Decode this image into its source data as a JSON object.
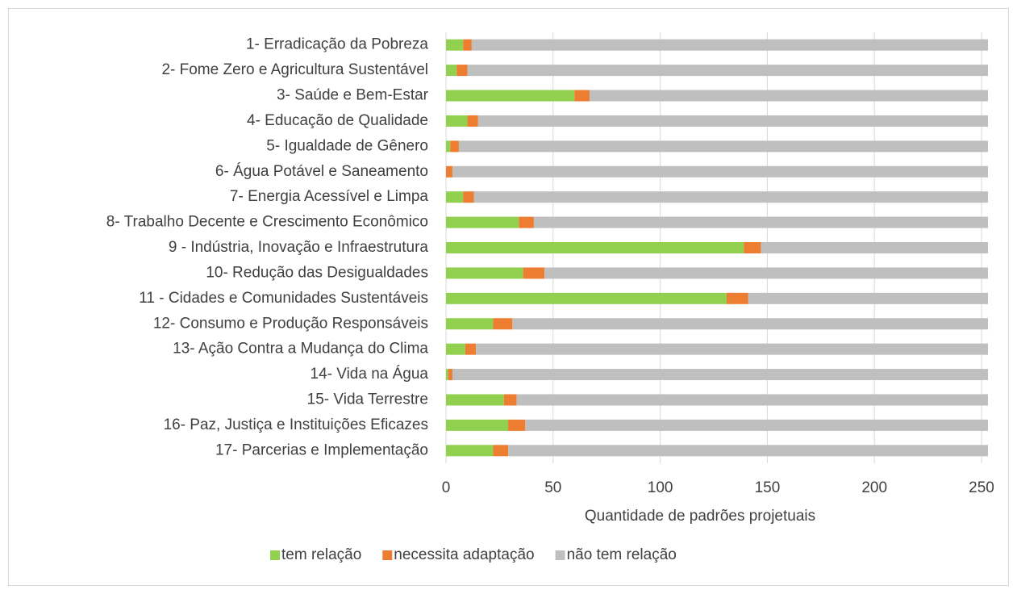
{
  "chart_data": {
    "type": "bar",
    "orientation": "horizontal",
    "stacked": true,
    "x_label": "Quantidade de padrões projetuais",
    "categories": [
      "1- Erradicação da Pobreza",
      "2- Fome Zero e Agricultura Sustentável",
      "3- Saúde e Bem-Estar",
      "4- Educação de Qualidade",
      "5- Igualdade de Gênero",
      "6- Água Potável e Saneamento",
      "7- Energia Acessível e Limpa",
      "8- Trabalho Decente e Crescimento Econômico",
      "9 - Indústria, Inovação e Infraestrutura",
      "10- Redução das Desigualdades",
      "11 - Cidades e Comunidades Sustentáveis",
      "12- Consumo e Produção Responsáveis",
      "13- Ação Contra a Mudança do Clima",
      "14- Vida na Água",
      "15- Vida Terrestre",
      "16- Paz, Justiça e Instituições Eficazes",
      "17- Parcerias e Implementação"
    ],
    "series": [
      {
        "name": "tem relação",
        "color": "#92d050",
        "values": [
          8,
          5,
          60,
          10,
          2,
          0,
          8,
          34,
          139,
          36,
          131,
          22,
          9,
          1,
          27,
          29,
          22
        ]
      },
      {
        "name": "necessita adaptação",
        "color": "#ed7d31",
        "values": [
          4,
          5,
          7,
          5,
          4,
          3,
          5,
          7,
          8,
          10,
          10,
          9,
          5,
          2,
          6,
          8,
          7
        ]
      },
      {
        "name": "não tem relação",
        "color": "#bfbfbf",
        "values": [
          241,
          243,
          186,
          238,
          247,
          250,
          240,
          212,
          106,
          207,
          112,
          222,
          239,
          250,
          220,
          216,
          224
        ]
      }
    ],
    "xlim": [
      0,
      253
    ],
    "xticks": [
      0,
      50,
      100,
      150,
      200,
      250
    ],
    "grid": true,
    "legend": "bottom"
  }
}
